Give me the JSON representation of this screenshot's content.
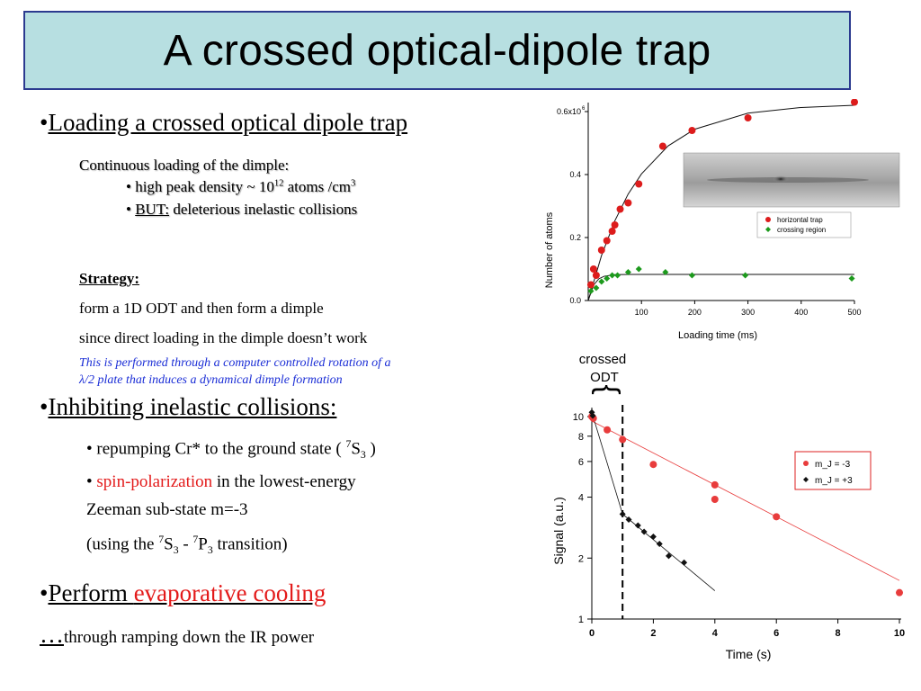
{
  "title": "A crossed optical-dipole trap",
  "left": {
    "bullet1": {
      "dot": "•",
      "label": "Loading a crossed optical dipole trap"
    },
    "cont_loading": "Continuous loading of the dimple:",
    "peak_density": {
      "prefix": "• high peak density ~ 10",
      "exp": "12",
      "mid": " atoms /cm",
      "exp2": "3"
    },
    "but_line": {
      "prefix": "• ",
      "but": "BUT:",
      "rest": " deleterious inelastic collisions"
    },
    "strategy": "Strategy:",
    "strategy_line1": "form a 1D ODT and then form a dimple",
    "strategy_line2": "since direct loading in the dimple doesn’t work",
    "note_line1": "This is performed through a computer controlled rotation of a",
    "note_line2": "λ/2 plate that induces a dynamical dimple formation",
    "bullet2": {
      "dot": "•",
      "label": "Inhibiting inelastic collisions:"
    },
    "repump": {
      "prefix": "• repumping Cr* to the ground state ( ",
      "sup": "7",
      "S": "S",
      "sub": "3",
      "suffix": " )"
    },
    "spinpol": {
      "prefix": "• ",
      "red": "spin-polarization",
      "rest": " in the lowest-energy"
    },
    "zeeman": "Zeeman sub-state m=-3",
    "transition": {
      "p1": "(using the ",
      "s1": "7",
      "S": "S",
      "b1": "3",
      "mid": " - ",
      "s2": "7",
      "P": "P",
      "b2": "3",
      "end": " transition)"
    },
    "bullet3": {
      "dot": "•",
      "label": "Perform ",
      "red": "evaporative cooling"
    },
    "ellipsis": "…",
    "last_line": "through ramping down the IR power"
  },
  "chart_data": [
    {
      "type": "scatter",
      "xlabel": "Loading time (ms)",
      "ylabel": "Number of atoms",
      "xlim": [
        0,
        500
      ],
      "ylim": [
        0,
        0.6
      ],
      "xticks": [
        100,
        200,
        300,
        400,
        500
      ],
      "yticks": [
        {
          "v": 0.0,
          "label": "0.0"
        },
        {
          "v": 0.2,
          "label": "0.2"
        },
        {
          "v": 0.4,
          "label": "0.4"
        },
        {
          "v": 0.6,
          "label": "0.6x10"
        }
      ],
      "ytick_exp": "6",
      "legend": {
        "placement": "right",
        "entries": [
          "horizontal trap",
          "crossing region"
        ]
      },
      "series": [
        {
          "name": "horizontal trap",
          "color": "#dd1c1c",
          "marker": "circle",
          "x": [
            5,
            10,
            15,
            25,
            35,
            45,
            50,
            60,
            75,
            95,
            140,
            195,
            300,
            500
          ],
          "y": [
            0.05,
            0.1,
            0.08,
            0.16,
            0.19,
            0.22,
            0.24,
            0.29,
            0.31,
            0.37,
            0.49,
            0.54,
            0.58,
            0.63
          ]
        },
        {
          "name": "crossing region",
          "color": "#1d9a1d",
          "marker": "diamond",
          "x": [
            5,
            15,
            25,
            35,
            45,
            55,
            75,
            95,
            145,
            195,
            295,
            495
          ],
          "y": [
            0.03,
            0.04,
            0.06,
            0.07,
            0.08,
            0.08,
            0.09,
            0.1,
            0.09,
            0.08,
            0.08,
            0.07
          ]
        }
      ],
      "fits": [
        {
          "series": "horizontal trap",
          "x": [
            0,
            25,
            50,
            75,
            100,
            150,
            200,
            300,
            400,
            500
          ],
          "y": [
            0.0,
            0.143,
            0.253,
            0.338,
            0.402,
            0.491,
            0.544,
            0.595,
            0.613,
            0.62
          ]
        },
        {
          "series": "crossing region",
          "x": [
            0,
            10,
            20,
            30,
            50,
            80,
            500
          ],
          "y": [
            0.0,
            0.049,
            0.069,
            0.077,
            0.082,
            0.083,
            0.083
          ]
        }
      ]
    },
    {
      "type": "scatter",
      "xlabel": "Time (s)",
      "ylabel": "Signal (a.u.)",
      "xlim": [
        0,
        10
      ],
      "ylim": [
        1,
        10
      ],
      "yscale": "log",
      "xticks": [
        0,
        2,
        4,
        6,
        8,
        10
      ],
      "yticks": [
        1,
        2,
        4,
        6,
        8,
        10
      ],
      "legend": {
        "placement": "right",
        "entries": [
          "m_J = -3",
          "m_J = +3"
        ]
      },
      "annotation": {
        "line1": "crossed",
        "line2": "ODT",
        "brace": "{",
        "x_marker": 1
      },
      "series": [
        {
          "name": "m_J = -3",
          "color": "#e83c3c",
          "marker": "circle",
          "x": [
            0,
            0.05,
            0.5,
            1,
            2,
            4,
            4,
            6,
            10
          ],
          "y": [
            10.0,
            9.8,
            8.6,
            7.7,
            5.8,
            4.6,
            3.9,
            3.2,
            1.35
          ]
        },
        {
          "name": "m_J = +3",
          "color": "#111111",
          "marker": "diamond",
          "x": [
            0,
            0.03,
            1,
            1.2,
            1.5,
            1.7,
            2.0,
            2.2,
            2.5,
            3.0
          ],
          "y": [
            10.5,
            10.1,
            3.3,
            3.1,
            2.9,
            2.7,
            2.55,
            2.35,
            2.05,
            1.9
          ]
        }
      ],
      "fits": [
        {
          "series": "m_J = -3",
          "x": [
            0,
            10
          ],
          "y": [
            9.5,
            1.55
          ]
        },
        {
          "series": "m_J = +3",
          "x": [
            0,
            1,
            4
          ],
          "y": [
            10.5,
            3.3,
            1.38
          ]
        }
      ]
    }
  ]
}
